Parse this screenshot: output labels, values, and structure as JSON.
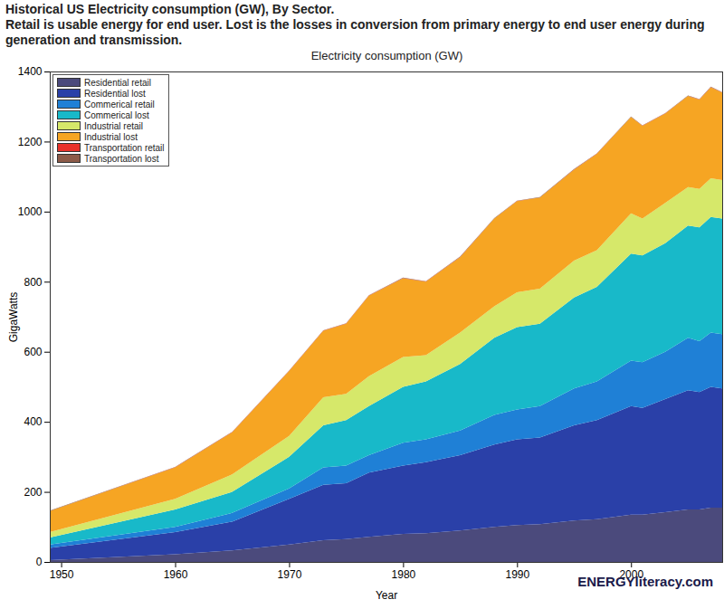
{
  "chart_data": {
    "type": "area",
    "stacked": true,
    "title": "Historical US Electricity consumption (GW), By Sector.",
    "subtitle": "Retail is usable energy for end user. Lost is the losses in conversion from primary energy to end user energy during generation and transmission.",
    "plot_title": "Electricity consumption (GW)",
    "x_label": "Year",
    "y_label": "GigaWatts",
    "source": "ENERGYliteracy.com",
    "x": [
      1949,
      1960,
      1965,
      1970,
      1973,
      1975,
      1977,
      1980,
      1982,
      1985,
      1988,
      1990,
      1992,
      1995,
      1997,
      2000,
      2001,
      2003,
      2005,
      2006,
      2007,
      2008
    ],
    "series": [
      {
        "name": "Residential retail",
        "color": "#4b4a7c",
        "values": [
          5,
          22,
          33,
          50,
          62,
          65,
          72,
          80,
          82,
          90,
          100,
          105,
          108,
          118,
          122,
          135,
          135,
          142,
          150,
          150,
          155,
          155
        ]
      },
      {
        "name": "Residential lost",
        "color": "#2a40a8",
        "values": [
          35,
          63,
          82,
          130,
          158,
          160,
          183,
          195,
          203,
          215,
          235,
          245,
          247,
          272,
          283,
          310,
          305,
          323,
          340,
          335,
          345,
          340
        ]
      },
      {
        "name": "Commerical retail",
        "color": "#1f80d6",
        "values": [
          10,
          15,
          25,
          30,
          50,
          50,
          50,
          65,
          65,
          70,
          85,
          85,
          90,
          105,
          110,
          130,
          130,
          135,
          150,
          145,
          155,
          155
        ]
      },
      {
        "name": "Commerical lost",
        "color": "#18b9c9",
        "values": [
          20,
          50,
          60,
          90,
          120,
          130,
          140,
          160,
          165,
          190,
          220,
          235,
          235,
          260,
          270,
          305,
          305,
          310,
          320,
          325,
          330,
          330
        ]
      },
      {
        "name": "Industrial retail",
        "color": "#d6e86a",
        "values": [
          15,
          30,
          50,
          60,
          80,
          75,
          85,
          85,
          75,
          90,
          90,
          100,
          100,
          105,
          105,
          115,
          105,
          115,
          110,
          110,
          110,
          110
        ]
      },
      {
        "name": "Industrial lost",
        "color": "#f6a523",
        "values": [
          60,
          90,
          120,
          185,
          190,
          200,
          230,
          225,
          210,
          215,
          250,
          260,
          260,
          260,
          275,
          275,
          265,
          255,
          260,
          255,
          260,
          250
        ]
      },
      {
        "name": "Transportation retail",
        "color": "#e8312a",
        "values": [
          0.5,
          0.5,
          0.5,
          0.5,
          0.5,
          0.5,
          0.5,
          0.5,
          0.5,
          0.5,
          0.5,
          0.5,
          0.5,
          0.5,
          0.5,
          0.5,
          0.5,
          0.5,
          0.5,
          0.5,
          0.5,
          0.5
        ]
      },
      {
        "name": "Transportation lost",
        "color": "#8c5a48",
        "values": [
          1,
          1,
          1,
          1,
          1,
          1,
          1,
          1,
          1,
          1,
          1,
          1,
          1,
          1,
          1,
          1,
          1,
          1,
          1,
          1,
          1,
          1
        ]
      }
    ],
    "xlim": [
      1949,
      2008
    ],
    "xticks": [
      1950,
      1960,
      1970,
      1980,
      1990,
      2000
    ],
    "ylim": [
      0,
      1400
    ],
    "yticks": [
      0,
      200,
      400,
      600,
      800,
      1000,
      1200,
      1400
    ],
    "grid": false,
    "legend": "top-left"
  }
}
